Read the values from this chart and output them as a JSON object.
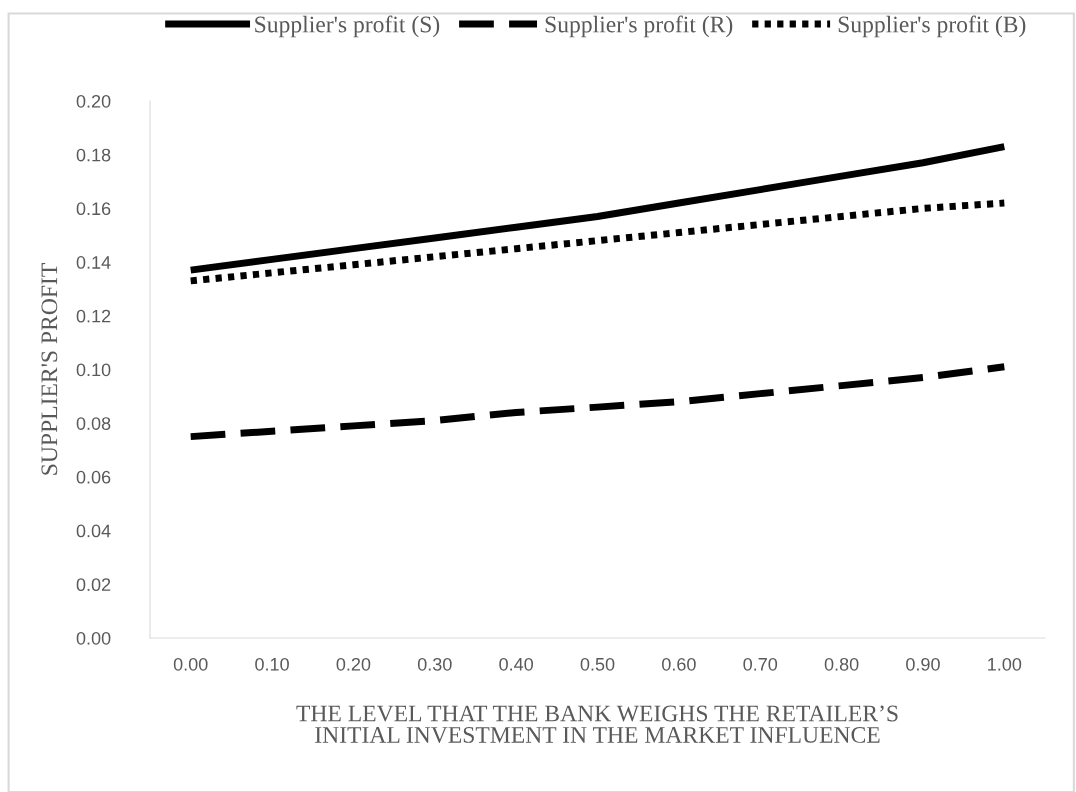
{
  "chart_data": {
    "type": "line",
    "xlabel": "THE LEVEL THAT THE BANK WEIGHS THE RETAILER’S\nINITIAL INVESTMENT IN THE MARKET INFLUENCE",
    "ylabel": "SUPPLIER'S PROFIT",
    "categories": [
      "0.00",
      "0.10",
      "0.20",
      "0.30",
      "0.40",
      "0.50",
      "0.60",
      "0.70",
      "0.80",
      "0.90",
      "1.00"
    ],
    "series": [
      {
        "name": "Supplier's profit (S)",
        "color": "#000000",
        "line_style": "solid",
        "values": [
          0.137,
          0.141,
          0.145,
          0.149,
          0.153,
          0.157,
          0.162,
          0.167,
          0.172,
          0.177,
          0.183
        ]
      },
      {
        "name": "Supplier's profit (R)",
        "color": "#000000",
        "line_style": "dashed",
        "values": [
          0.075,
          0.077,
          0.079,
          0.081,
          0.084,
          0.086,
          0.088,
          0.091,
          0.094,
          0.097,
          0.101
        ]
      },
      {
        "name": "Supplier's profit (B)",
        "color": "#000000",
        "line_style": "dotted",
        "values": [
          0.133,
          0.136,
          0.139,
          0.142,
          0.145,
          0.148,
          0.151,
          0.154,
          0.157,
          0.16,
          0.162
        ]
      }
    ],
    "ylim": [
      0,
      0.2
    ],
    "yticks": [
      {
        "value": 0,
        "label": "0.00"
      },
      {
        "value": 0.02,
        "label": "0.02"
      },
      {
        "value": 0.04,
        "label": "0.04"
      },
      {
        "value": 0.06,
        "label": "0.06"
      },
      {
        "value": 0.08,
        "label": "0.08"
      },
      {
        "value": 0.1,
        "label": "0.10"
      },
      {
        "value": 0.12,
        "label": "0.12"
      },
      {
        "value": 0.14,
        "label": "0.14"
      },
      {
        "value": 0.16,
        "label": "0.16"
      },
      {
        "value": 0.18,
        "label": "0.18"
      },
      {
        "value": 0.2,
        "label": "0.20"
      }
    ],
    "grid": false,
    "legend": "top",
    "marker": "none"
  }
}
